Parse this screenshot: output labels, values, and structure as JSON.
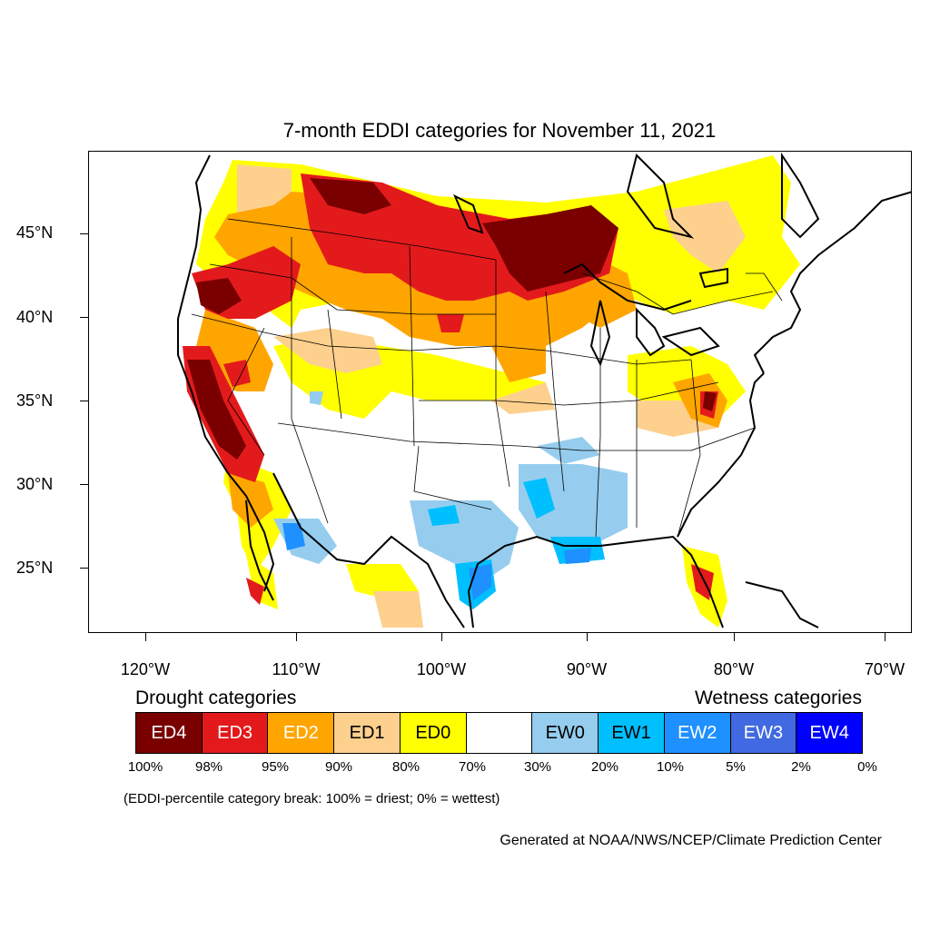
{
  "title": "7-month EDDI categories for November 11, 2021",
  "axes": {
    "lat_labels": [
      "45°N",
      "40°N",
      "35°N",
      "30°N",
      "25°N"
    ],
    "lon_labels": [
      "120°W",
      "110°W",
      "100°W",
      "90°W",
      "80°W",
      "70°W"
    ]
  },
  "legend": {
    "drought_heading": "Drought categories",
    "wetness_heading": "Wetness categories",
    "categories": [
      {
        "label": "ED4",
        "color": "#7a0000",
        "text_color": "#ffffff"
      },
      {
        "label": "ED3",
        "color": "#e31a1c",
        "text_color": "#ffffff"
      },
      {
        "label": "ED2",
        "color": "#ffa500",
        "text_color": "#ffffff"
      },
      {
        "label": "ED1",
        "color": "#fdd08e",
        "text_color": "#000000"
      },
      {
        "label": "ED0",
        "color": "#ffff00",
        "text_color": "#000000"
      },
      {
        "label": "",
        "color": "#ffffff",
        "text_color": "#000000"
      },
      {
        "label": "EW0",
        "color": "#96cdee",
        "text_color": "#000000"
      },
      {
        "label": "EW1",
        "color": "#00bfff",
        "text_color": "#000000"
      },
      {
        "label": "EW2",
        "color": "#1e90ff",
        "text_color": "#ffffff"
      },
      {
        "label": "EW3",
        "color": "#4169e1",
        "text_color": "#ffffff"
      },
      {
        "label": "EW4",
        "color": "#0000ff",
        "text_color": "#ffffff"
      }
    ],
    "percent_breaks": [
      "100%",
      "98%",
      "95%",
      "90%",
      "80%",
      "70%",
      "30%",
      "20%",
      "10%",
      "5%",
      "2%",
      "0%"
    ]
  },
  "breaks_note": "(EDDI-percentile category break: 100% = driest; 0% = wettest)",
  "credit": "Generated at NOAA/NWS/NCEP/Climate Prediction Center"
}
